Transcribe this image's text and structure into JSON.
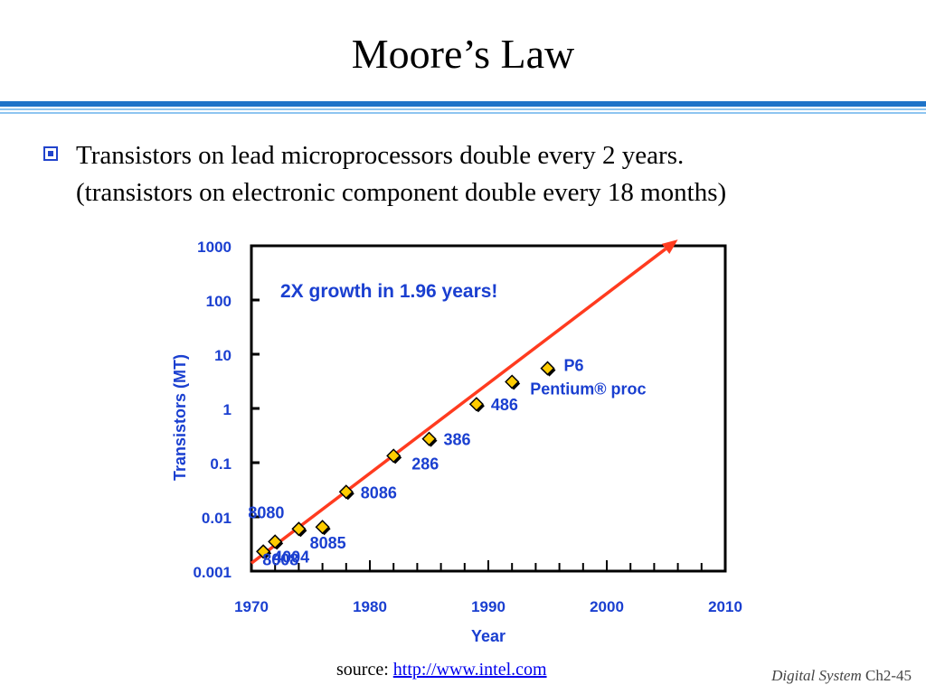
{
  "slide": {
    "title": "Moore’s Law",
    "bullet_line1": "Transistors on lead microprocessors double every 2 years.",
    "bullet_line2": "(transistors on electronic component double every 18 months)",
    "source_label": "source:",
    "source_link": "http://www.intel.com",
    "footer_course": "Digital System",
    "footer_page": "Ch2-45"
  },
  "colors": {
    "rule_blue": "#1e73c8",
    "rule_light": "#8ec5f0",
    "axis_text": "#1a3fd0",
    "trend": "#ff3b1f",
    "marker_fill": "#ffcc00",
    "marker_shadow": "#000000"
  },
  "chart_data": {
    "type": "scatter",
    "title": "",
    "xlabel": "Year",
    "ylabel": "Transistors (MT)",
    "xlim": [
      1970,
      2010
    ],
    "ylim": [
      0.001,
      1000
    ],
    "yscale": "log",
    "x_ticks": [
      1970,
      1980,
      1990,
      2000,
      2010
    ],
    "y_ticks": [
      {
        "value": 0.001,
        "label": "0.001"
      },
      {
        "value": 0.01,
        "label": "0.01"
      },
      {
        "value": 0.1,
        "label": "0.1"
      },
      {
        "value": 1,
        "label": "1"
      },
      {
        "value": 10,
        "label": "10"
      },
      {
        "value": 100,
        "label": "100"
      },
      {
        "value": 1000,
        "label": "1000"
      }
    ],
    "annotation": "2X growth in 1.96 years!",
    "trend_line": {
      "x": [
        1970,
        2006
      ],
      "y": [
        0.0014,
        1300
      ]
    },
    "points": [
      {
        "label": "4004",
        "x": 1971,
        "y": 0.0023
      },
      {
        "label": "8008",
        "x": 1972,
        "y": 0.0035
      },
      {
        "label": "8080",
        "x": 1974,
        "y": 0.006
      },
      {
        "label": "8085",
        "x": 1976,
        "y": 0.0065
      },
      {
        "label": "8086",
        "x": 1978,
        "y": 0.029
      },
      {
        "label": "286",
        "x": 1982,
        "y": 0.134
      },
      {
        "label": "386",
        "x": 1985,
        "y": 0.275
      },
      {
        "label": "486",
        "x": 1989,
        "y": 1.2
      },
      {
        "label": "Pentium® proc",
        "x": 1992,
        "y": 3.1
      },
      {
        "label": "P6",
        "x": 1995,
        "y": 5.5
      }
    ]
  }
}
